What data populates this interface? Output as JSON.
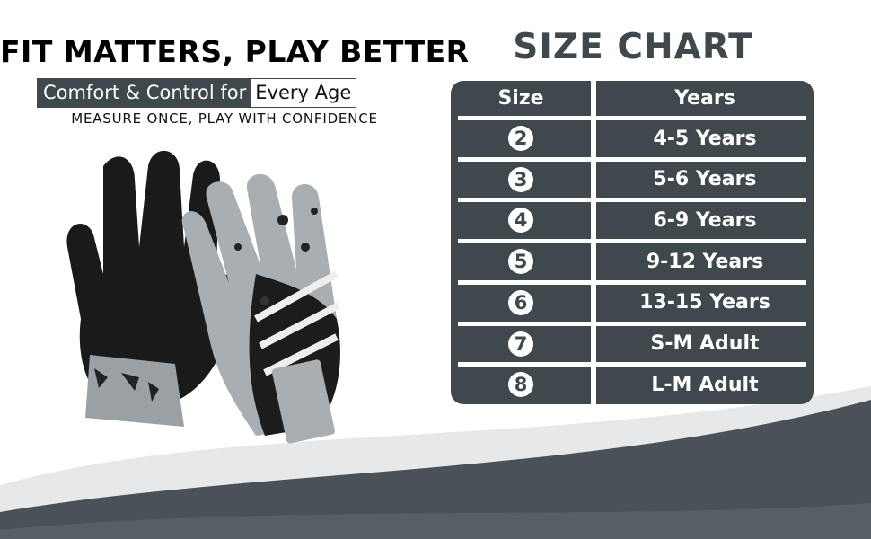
{
  "headline": "FIT MATTERS, PLAY BETTER",
  "subheadline": {
    "highlighted": "Comfort & Control for",
    "boxed": "Every Age"
  },
  "tagline": "MEASURE ONCE, PLAY WITH CONFIDENCE",
  "size_chart": {
    "title": "SIZE CHART",
    "headers": [
      "Size",
      "Years"
    ],
    "rows": [
      {
        "size": "2",
        "years": "4-5 Years"
      },
      {
        "size": "3",
        "years": "5-6 Years"
      },
      {
        "size": "4",
        "years": "6-9 Years"
      },
      {
        "size": "5",
        "years": "9-12 Years"
      },
      {
        "size": "6",
        "years": "13-15 Years"
      },
      {
        "size": "7",
        "years": "S-M Adult"
      },
      {
        "size": "8",
        "years": "L-M Adult"
      }
    ]
  },
  "colors": {
    "primary": "#3f484d",
    "band": "#e6e7e8"
  }
}
